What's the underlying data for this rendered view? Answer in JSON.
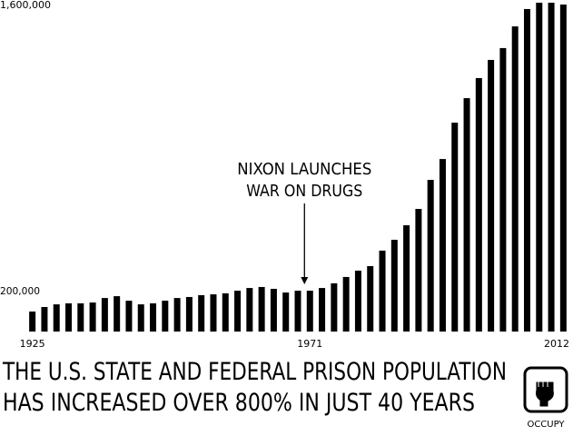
{
  "chart_data": {
    "type": "bar",
    "title": [
      "THE U.S. STATE AND FEDERAL PRISON POPULATION",
      "HAS INCREASED OVER 800% IN JUST 40 YEARS"
    ],
    "categories": [
      "1925",
      null,
      null,
      null,
      null,
      null,
      null,
      null,
      null,
      null,
      null,
      null,
      null,
      null,
      null,
      null,
      null,
      null,
      null,
      null,
      null,
      null,
      null,
      "1971",
      null,
      null,
      null,
      null,
      null,
      null,
      null,
      null,
      null,
      null,
      null,
      null,
      null,
      null,
      null,
      null,
      null,
      null,
      null,
      null,
      "2012"
    ],
    "values": [
      98000,
      120000,
      133000,
      138000,
      138000,
      142000,
      164000,
      173000,
      151000,
      133000,
      138000,
      151000,
      164000,
      169000,
      178000,
      182000,
      187000,
      200000,
      213000,
      218000,
      209000,
      191000,
      200000,
      200000,
      213000,
      236000,
      267000,
      298000,
      320000,
      396000,
      449000,
      520000,
      600000,
      742000,
      844000,
      1022000,
      1142000,
      1240000,
      1329000,
      1387000,
      1493000,
      1578000,
      1609000,
      1609000,
      1600000
    ],
    "color": "#000000",
    "ylim": [
      0,
      1600000
    ],
    "yticks": [
      {
        "value": 200000,
        "label": "200,000"
      },
      {
        "value": 1600000,
        "label": "1,600,000"
      }
    ],
    "grid": false,
    "annotation": {
      "lines": [
        "NIXON LAUNCHES",
        "WAR ON DRUGS"
      ],
      "category_index": 23
    },
    "logo_label": "OCCUPY"
  }
}
